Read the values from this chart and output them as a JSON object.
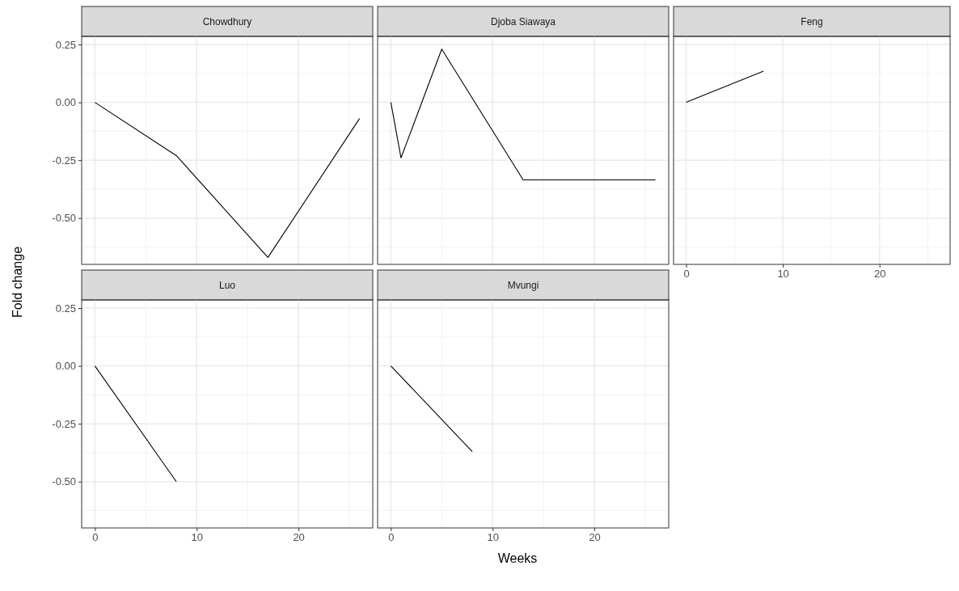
{
  "chart_data": [
    {
      "type": "line",
      "title": "Chowdhury",
      "ylabel": "Fold change",
      "x": [
        0,
        8,
        17,
        26
      ],
      "values": [
        0,
        -0.23,
        -0.67,
        -0.07
      ],
      "color": "#000000",
      "xlim": [
        -1.3,
        27.3
      ],
      "ylim": [
        -0.7,
        0.285
      ],
      "xticks": [
        0,
        10,
        20
      ],
      "yticks": [
        {
          "value": 0.25,
          "label": "0.25"
        },
        {
          "value": 0,
          "label": "0.00"
        },
        {
          "value": -0.25,
          "label": "-0.25"
        },
        {
          "value": -0.5,
          "label": "-0.50"
        }
      ],
      "grid": true,
      "tick_labels": "y"
    },
    {
      "type": "line",
      "title": "Djoba Siawaya",
      "x": [
        0,
        1,
        5,
        13,
        26
      ],
      "values": [
        0,
        -0.24,
        0.23,
        -0.335,
        -0.335
      ],
      "color": "#000000",
      "xlim": [
        -1.3,
        27.3
      ],
      "ylim": [
        -0.7,
        0.285
      ],
      "xticks": [
        0,
        10,
        20
      ],
      "yticks": [
        0.25,
        0,
        -0.25,
        -0.5
      ],
      "grid": true,
      "tick_labels": false
    },
    {
      "type": "line",
      "title": "Feng",
      "x": [
        0,
        8
      ],
      "values": [
        0,
        0.135
      ],
      "color": "#000000",
      "xlim": [
        -1.3,
        27.3
      ],
      "ylim": [
        -0.7,
        0.285
      ],
      "xticks": [
        0,
        10,
        20
      ],
      "yticks": [
        0.25,
        0,
        -0.25,
        -0.5
      ],
      "grid": true,
      "tick_labels": "x"
    },
    {
      "type": "line",
      "title": "Luo",
      "x": [
        0,
        8
      ],
      "values": [
        0,
        -0.5
      ],
      "color": "#000000",
      "xlim": [
        -1.3,
        27.3
      ],
      "ylim": [
        -0.7,
        0.285
      ],
      "xticks": [
        0,
        10,
        20
      ],
      "yticks": [
        {
          "value": 0.25,
          "label": "0.25"
        },
        {
          "value": 0,
          "label": "0.00"
        },
        {
          "value": -0.25,
          "label": "-0.25"
        },
        {
          "value": -0.5,
          "label": "-0.50"
        }
      ],
      "grid": true
    },
    {
      "type": "line",
      "title": "Mvungi",
      "xlabel": "Weeks",
      "x": [
        0,
        8
      ],
      "values": [
        0,
        -0.37
      ],
      "color": "#000000",
      "xlim": [
        -1.3,
        27.3
      ],
      "ylim": [
        -0.7,
        0.285
      ],
      "xticks": [
        0,
        10,
        20
      ],
      "yticks": [
        0.25,
        0,
        -0.25,
        -0.5
      ],
      "grid": true,
      "tick_labels": "x"
    }
  ]
}
